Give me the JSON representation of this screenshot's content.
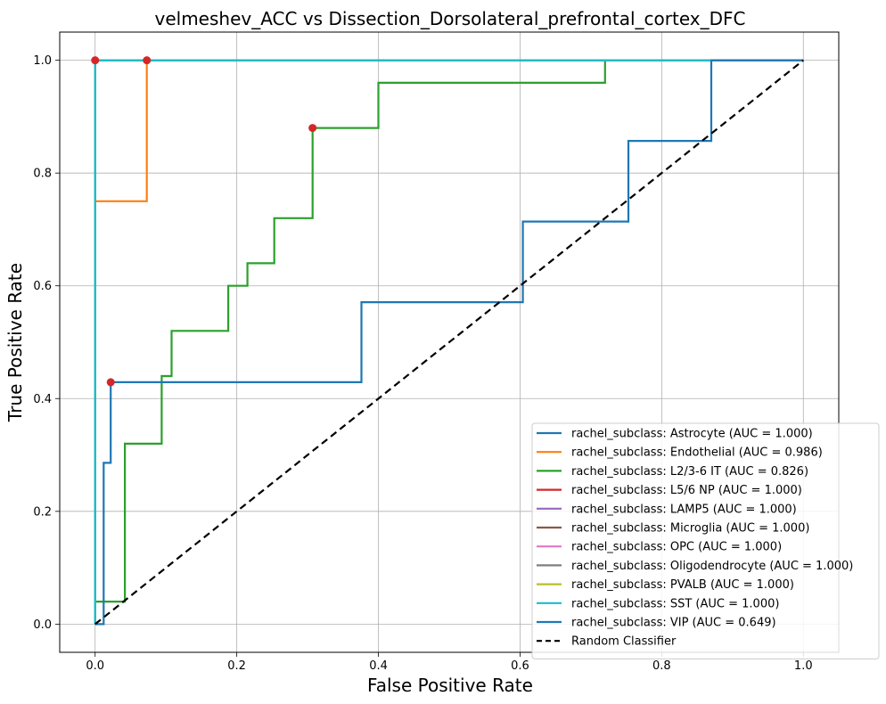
{
  "chart_data": {
    "type": "line",
    "title": "velmeshev_ACC vs Dissection_Dorsolateral_prefrontal_cortex_DFC",
    "xlabel": "False Positive Rate",
    "ylabel": "True Positive Rate",
    "xlim": [
      -0.05,
      1.05
    ],
    "ylim": [
      -0.05,
      1.05
    ],
    "x_ticks": [
      0.0,
      0.2,
      0.4,
      0.6,
      0.8,
      1.0
    ],
    "y_ticks": [
      0.0,
      0.2,
      0.4,
      0.6,
      0.8,
      1.0
    ],
    "x_tick_labels": [
      "0.0",
      "0.2",
      "0.4",
      "0.6",
      "0.8",
      "1.0"
    ],
    "y_tick_labels": [
      "0.0",
      "0.2",
      "0.4",
      "0.6",
      "0.8",
      "1.0"
    ],
    "grid": true,
    "legend_position": "lower right",
    "series": [
      {
        "name": "rachel_subclass: Astrocyte (AUC = 1.000)",
        "color": "#1f77b4",
        "style": "solid",
        "x": [
          0,
          0,
          1
        ],
        "y": [
          0,
          1,
          1
        ]
      },
      {
        "name": "rachel_subclass: Endothelial (AUC = 0.986)",
        "color": "#ff7f0e",
        "style": "solid",
        "x": [
          0,
          0,
          0.073,
          0.073,
          1
        ],
        "y": [
          0,
          0.75,
          0.75,
          1,
          1
        ]
      },
      {
        "name": "rachel_subclass: L2/3-6 IT (AUC = 0.826)",
        "color": "#2ca02c",
        "style": "solid",
        "x": [
          0,
          0,
          0.042,
          0.042,
          0.094,
          0.094,
          0.108,
          0.108,
          0.188,
          0.188,
          0.215,
          0.215,
          0.253,
          0.253,
          0.307,
          0.307,
          0.4,
          0.4,
          0.72,
          0.72,
          1
        ],
        "y": [
          0,
          0.04,
          0.04,
          0.32,
          0.32,
          0.44,
          0.44,
          0.52,
          0.52,
          0.6,
          0.6,
          0.64,
          0.64,
          0.72,
          0.72,
          0.88,
          0.88,
          0.96,
          0.96,
          1,
          1
        ]
      },
      {
        "name": "rachel_subclass: L5/6 NP (AUC = 1.000)",
        "color": "#d62728",
        "style": "solid",
        "x": [
          0,
          0,
          1
        ],
        "y": [
          0,
          1,
          1
        ]
      },
      {
        "name": "rachel_subclass: LAMP5 (AUC = 1.000)",
        "color": "#9467bd",
        "style": "solid",
        "x": [
          0,
          0,
          1
        ],
        "y": [
          0,
          1,
          1
        ]
      },
      {
        "name": "rachel_subclass: Microglia (AUC = 1.000)",
        "color": "#8c564b",
        "style": "solid",
        "x": [
          0,
          0,
          1
        ],
        "y": [
          0,
          1,
          1
        ]
      },
      {
        "name": "rachel_subclass: OPC (AUC = 1.000)",
        "color": "#e377c2",
        "style": "solid",
        "x": [
          0,
          0,
          1
        ],
        "y": [
          0,
          1,
          1
        ]
      },
      {
        "name": "rachel_subclass: Oligodendrocyte (AUC = 1.000)",
        "color": "#7f7f7f",
        "style": "solid",
        "x": [
          0,
          0,
          1
        ],
        "y": [
          0,
          1,
          1
        ]
      },
      {
        "name": "rachel_subclass: PVALB (AUC = 1.000)",
        "color": "#bcbd22",
        "style": "solid",
        "x": [
          0,
          0,
          1
        ],
        "y": [
          0,
          1,
          1
        ]
      },
      {
        "name": "rachel_subclass: SST (AUC = 1.000)",
        "color": "#17becf",
        "style": "solid",
        "x": [
          0,
          0,
          1
        ],
        "y": [
          0,
          1,
          1
        ]
      },
      {
        "name": "rachel_subclass: VIP (AUC = 0.649)",
        "color": "#1f77b4",
        "style": "solid",
        "x": [
          0,
          0.012,
          0.012,
          0.022,
          0.022,
          0.376,
          0.376,
          0.604,
          0.604,
          0.753,
          0.753,
          0.87,
          0.87,
          1
        ],
        "y": [
          0,
          0,
          0.286,
          0.286,
          0.429,
          0.429,
          0.571,
          0.571,
          0.714,
          0.714,
          0.857,
          0.857,
          1,
          1
        ]
      },
      {
        "name": "Random Classifier",
        "color": "#000000",
        "style": "dashed",
        "x": [
          0,
          1
        ],
        "y": [
          0,
          1
        ]
      }
    ],
    "markers": {
      "color": "#d62728",
      "points": [
        {
          "x": 0.0,
          "y": 1.0
        },
        {
          "x": 0.073,
          "y": 1.0
        },
        {
          "x": 0.307,
          "y": 0.88
        },
        {
          "x": 0.022,
          "y": 0.429
        }
      ]
    }
  }
}
